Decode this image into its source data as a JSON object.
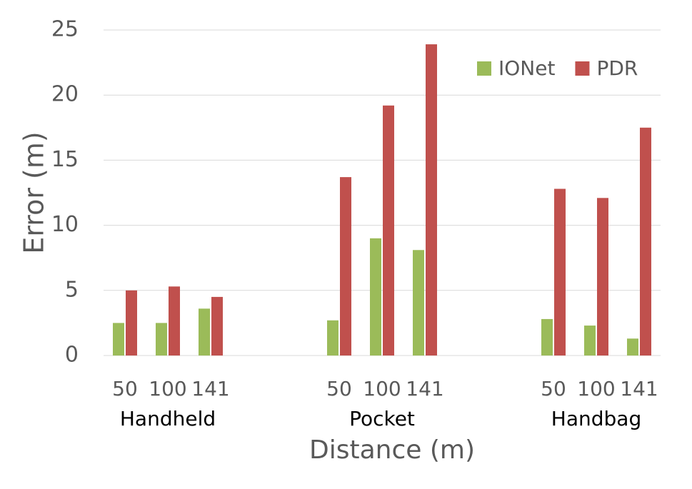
{
  "chart_data": {
    "type": "bar",
    "ylabel": "Error (m)",
    "xlabel": "Distance (m)",
    "categories": [
      "50",
      "100",
      "141",
      null,
      null,
      "50",
      "100",
      "141",
      null,
      null,
      "50",
      "100",
      "141"
    ],
    "groups": [
      "Handheld",
      "Pocket",
      "Handbag"
    ],
    "series": [
      {
        "name": "IONet",
        "color": "#9bbb59",
        "values": [
          2.5,
          2.5,
          3.6,
          null,
          null,
          2.7,
          9.0,
          8.1,
          null,
          null,
          2.8,
          2.3,
          1.3
        ]
      },
      {
        "name": "PDR",
        "color": "#c0504d",
        "values": [
          5.0,
          5.3,
          4.5,
          null,
          null,
          13.7,
          19.2,
          23.9,
          null,
          null,
          12.8,
          12.1,
          17.5
        ]
      }
    ],
    "ylim": [
      0,
      25
    ],
    "yticks": [
      0,
      5,
      10,
      15,
      20,
      25
    ],
    "grid": true,
    "legend": "top-right"
  }
}
